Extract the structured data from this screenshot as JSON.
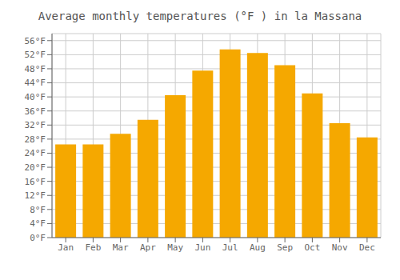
{
  "chart_data": {
    "type": "bar",
    "title": "Average monthly temperatures (°F ) in la Massana",
    "categories": [
      "Jan",
      "Feb",
      "Mar",
      "Apr",
      "May",
      "Jun",
      "Jul",
      "Aug",
      "Sep",
      "Oct",
      "Nov",
      "Dec"
    ],
    "values": [
      26.5,
      26.5,
      29.5,
      33.5,
      40.5,
      47.5,
      53.5,
      52.5,
      49.0,
      41.0,
      32.5,
      28.5
    ],
    "color": "#F5A800",
    "ylim": [
      0,
      58
    ],
    "yticks": [
      {
        "value": 0,
        "label": "0°F"
      },
      {
        "value": 4,
        "label": "4°F"
      },
      {
        "value": 8,
        "label": "8°F"
      },
      {
        "value": 12,
        "label": "12°F"
      },
      {
        "value": 16,
        "label": "16°F"
      },
      {
        "value": 20,
        "label": "20°F"
      },
      {
        "value": 24,
        "label": "24°F"
      },
      {
        "value": 28,
        "label": "28°F"
      },
      {
        "value": 32,
        "label": "32°F"
      },
      {
        "value": 36,
        "label": "36°F"
      },
      {
        "value": 40,
        "label": "40°F"
      },
      {
        "value": 44,
        "label": "44°F"
      },
      {
        "value": 48,
        "label": "48°F"
      },
      {
        "value": 52,
        "label": "52°F"
      },
      {
        "value": 56,
        "label": "56°F"
      }
    ],
    "grid": true
  }
}
